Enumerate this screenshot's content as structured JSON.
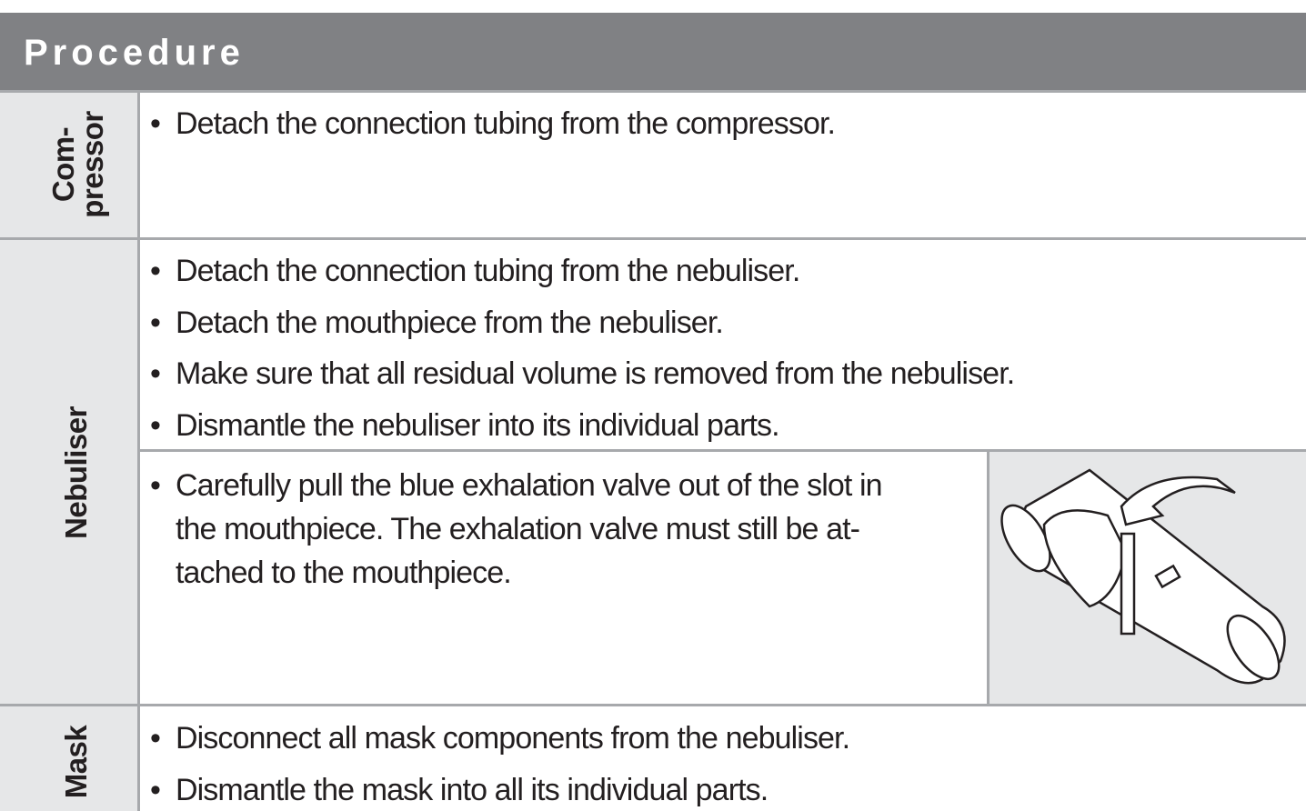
{
  "header": {
    "title": "Procedure"
  },
  "rows": [
    {
      "label_lines": [
        "Com-",
        "pressor"
      ],
      "bullets": [
        "Detach the connection tubing from the compressor."
      ]
    },
    {
      "label_lines": [
        "Nebuliser"
      ],
      "bullets": [
        "Detach the connection tubing from the nebuliser.",
        "Detach the mouthpiece from the nebuliser.",
        "Make sure that all residual volume is removed from the nebuliser.",
        "Dismantle the nebuliser into its individual parts."
      ],
      "sub_bullet_lines": [
        "Carefully pull the blue exhalation valve out of the slot in",
        "the mouthpiece. The exhalation valve must still be at-",
        "tached to the mouthpiece."
      ]
    },
    {
      "label_lines": [
        "Mask"
      ],
      "bullets": [
        "Disconnect all mask components from the nebuliser.",
        "Dismantle the mask into all its individual parts."
      ]
    }
  ]
}
